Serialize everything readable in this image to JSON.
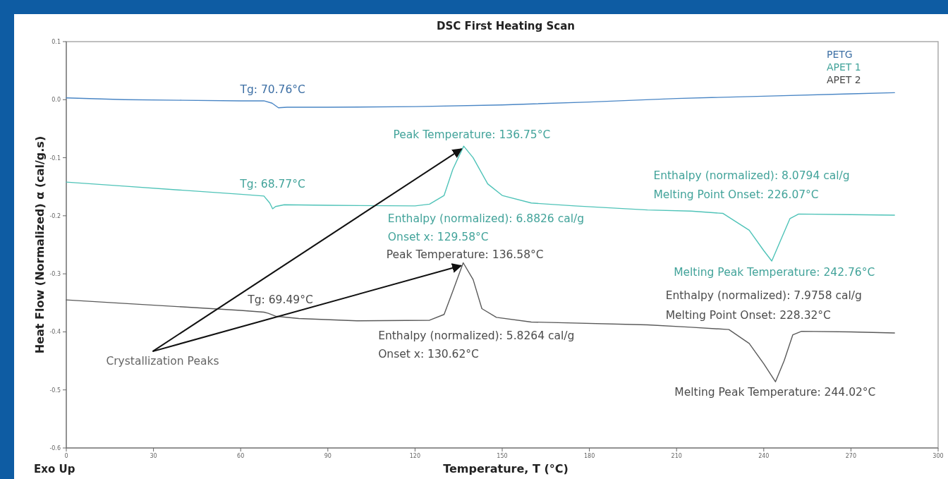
{
  "chart_data": {
    "type": "line",
    "title": "DSC First Heating Scan",
    "xlabel": "Temperature, T (°C)",
    "ylabel": "Heat Flow (Normalized) α (cal/g.s)",
    "xlim": [
      0,
      300
    ],
    "xticks": [
      0,
      30,
      60,
      90,
      120,
      150,
      180,
      210,
      240,
      270,
      300
    ],
    "ylim": [
      -0.6,
      0.1
    ],
    "yticks": [
      {
        "value": 0.1,
        "label": "0.1"
      },
      {
        "value": 0,
        "label": "0.0"
      },
      {
        "value": -0.1,
        "label": "-0.1"
      },
      {
        "value": -0.2,
        "label": "-0.2"
      },
      {
        "value": -0.3,
        "label": "-0.3"
      },
      {
        "value": -0.4,
        "label": "-0.4"
      },
      {
        "value": -0.5,
        "label": "-0.5"
      },
      {
        "value": -0.6,
        "label": "-0.6"
      }
    ],
    "grid": false,
    "legend": "top right",
    "marker": "none",
    "line_style": "solid",
    "series": [
      {
        "name": "PETG",
        "color": "#4a86c5",
        "x": [
          0,
          20,
          40,
          60,
          68,
          70.8,
          73,
          76,
          90,
          120,
          150,
          180,
          210,
          240,
          270,
          285
        ],
        "values": [
          0.003,
          0,
          -0.001,
          -0.002,
          -0.002,
          -0.006,
          -0.014,
          -0.013,
          -0.013,
          -0.012,
          -0.009,
          -0.004,
          0.002,
          0.006,
          0.01,
          0.012
        ]
      },
      {
        "name": "APET 1",
        "color": "#4fc3b8",
        "x": [
          0,
          20,
          40,
          60,
          68,
          70,
          71,
          72,
          75,
          90,
          120,
          125,
          130,
          133,
          136.75,
          140,
          145,
          150,
          160,
          175,
          200,
          215,
          226,
          235,
          240,
          242.76,
          246,
          249,
          252,
          270,
          285
        ],
        "values": [
          -0.142,
          -0.149,
          -0.156,
          -0.163,
          -0.166,
          -0.178,
          -0.188,
          -0.184,
          -0.181,
          -0.182,
          -0.183,
          -0.18,
          -0.165,
          -0.12,
          -0.08,
          -0.1,
          -0.145,
          -0.165,
          -0.178,
          -0.183,
          -0.19,
          -0.192,
          -0.196,
          -0.225,
          -0.26,
          -0.278,
          -0.24,
          -0.205,
          -0.197,
          -0.198,
          -0.199
        ]
      },
      {
        "name": "APET 2",
        "color": "#5a5a5a",
        "x": [
          0,
          20,
          40,
          60,
          68,
          69.5,
          72,
          80,
          100,
          125,
          130,
          133,
          136.58,
          140,
          143,
          148,
          160,
          200,
          215,
          228,
          235,
          240,
          244.02,
          247,
          250,
          253,
          270,
          285
        ],
        "values": [
          -0.345,
          -0.351,
          -0.357,
          -0.363,
          -0.366,
          -0.368,
          -0.373,
          -0.377,
          -0.381,
          -0.38,
          -0.37,
          -0.33,
          -0.281,
          -0.31,
          -0.36,
          -0.375,
          -0.383,
          -0.388,
          -0.392,
          -0.396,
          -0.42,
          -0.455,
          -0.486,
          -0.45,
          -0.405,
          -0.399,
          -0.4,
          -0.402
        ]
      }
    ],
    "annotations": [
      {
        "text": "Tg: 70.76°C",
        "x": 70.76,
        "y": -0.006
      },
      {
        "text": "Peak Temperature: 136.75°C",
        "x": 136.75,
        "y": -0.08
      },
      {
        "text": "Tg: 68.77°C",
        "x": 68.77,
        "y": -0.17
      },
      {
        "text": "Enthalpy (normalized): 6.8826 cal/g",
        "x": 129.58,
        "y": -0.166
      },
      "Onset x: 129.58°C",
      {
        "text": "Enthalpy (normalized): 8.0794 cal/g",
        "x": 226.07,
        "y": -0.196
      },
      {
        "text": "Melting Point Onset: 226.07°C",
        "x": 226.07,
        "y": -0.196
      },
      {
        "text": "Melting Peak Temperature: 242.76°C",
        "x": 242.76,
        "y": -0.278
      },
      {
        "text": "Peak Temperature: 136.58°C",
        "x": 136.58,
        "y": -0.281
      },
      {
        "text": "Tg: 69.49°C",
        "x": 69.49,
        "y": -0.37
      },
      {
        "text": "Enthalpy (normalized): 7.9758 cal/g",
        "x": 228.32,
        "y": -0.396
      },
      {
        "text": "Melting Point Onset: 228.32°C",
        "x": 228.32,
        "y": -0.396
      },
      {
        "text": "Melting Peak Temperature: 244.02°C",
        "x": 244.02,
        "y": -0.486
      },
      {
        "text": "Enthalpy (normalized): 5.8264 cal/g",
        "x": 130.62,
        "y": -0.362
      },
      "Onset x: 130.62°C",
      {
        "text": "Crystallization Peaks",
        "x": 136.75,
        "y": -0.08
      },
      "Exo Up"
    ]
  }
}
